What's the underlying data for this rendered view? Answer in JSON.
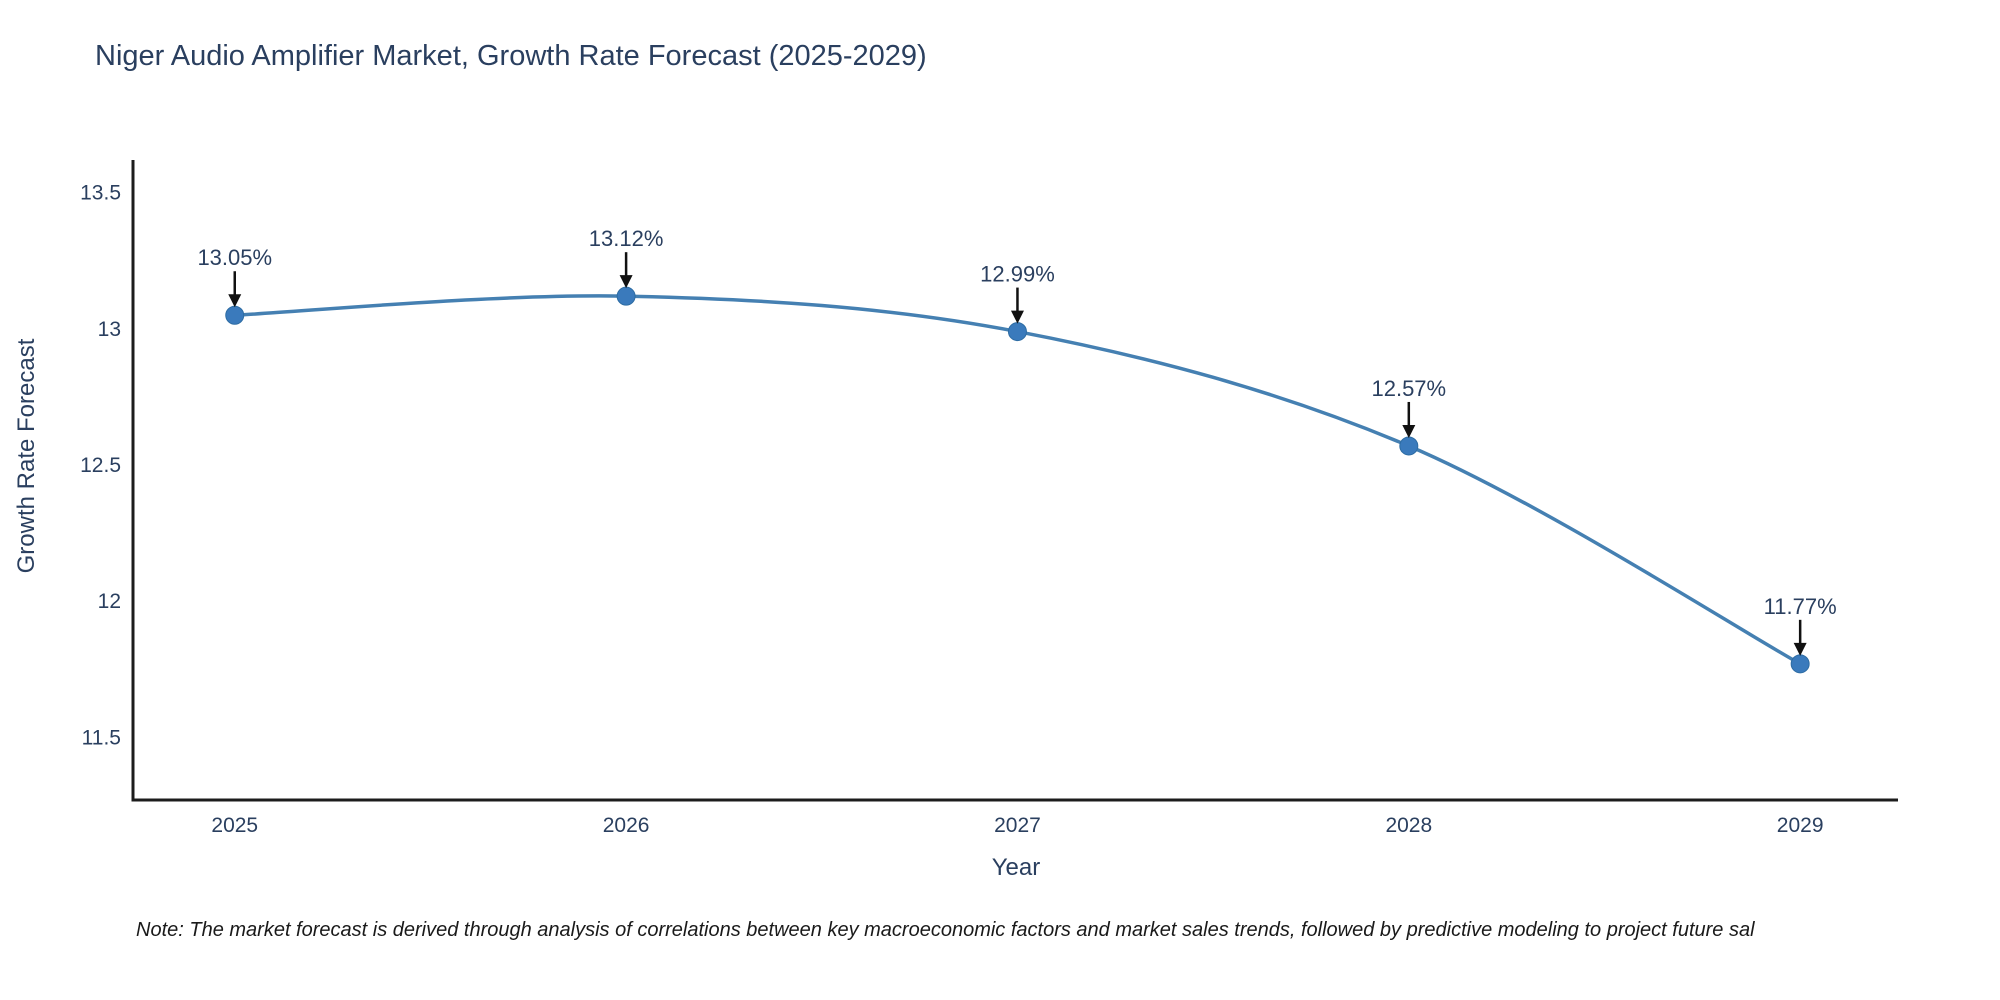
{
  "header": {
    "title": "Niger Audio Amplifier Market, Growth Rate Forecast (2025-2029)"
  },
  "footnote": {
    "text": "Note: The market forecast is derived through analysis of correlations between key macroeconomic factors and market sales trends, followed by predictive modeling to project future sal"
  },
  "chart_data": {
    "type": "line",
    "title": "Niger Audio Amplifier Market, Growth Rate Forecast (2025-2029)",
    "xlabel": "Year",
    "ylabel": "Growth Rate Forecast",
    "x": [
      2025,
      2026,
      2027,
      2028,
      2029
    ],
    "series": [
      {
        "name": "Growth Rate Forecast",
        "values": [
          13.05,
          13.12,
          12.99,
          12.57,
          11.77
        ]
      }
    ],
    "point_labels": [
      "13.05%",
      "13.12%",
      "12.99%",
      "12.57%",
      "11.77%"
    ],
    "x_ticks": [
      2025,
      2026,
      2027,
      2028,
      2029
    ],
    "y_ticks": [
      13.5,
      13,
      12.5,
      12,
      11.5
    ],
    "xlim": [
      2024.74,
      2029.25
    ],
    "ylim": [
      11.27,
      13.62
    ],
    "grid": false,
    "legend": "none",
    "line_shape": "spline",
    "annotation_arrows": true,
    "colors": {
      "line": "#4580b2",
      "marker": "#3a7abc",
      "marker_edge": "#2d6ca3",
      "axis_line": "#1c1c1c",
      "text": "#2a3f5f",
      "annotation_arrow": "#111111",
      "background": "#ffffff"
    }
  }
}
